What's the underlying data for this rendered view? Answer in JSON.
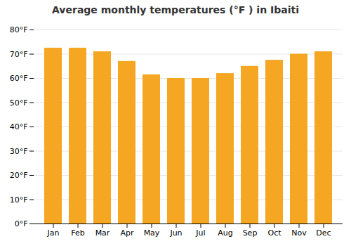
{
  "chart_data": {
    "type": "bar",
    "title": "Average monthly temperatures (°F ) in Ibaiti",
    "categories": [
      "Jan",
      "Feb",
      "Mar",
      "Apr",
      "May",
      "Jun",
      "Jul",
      "Aug",
      "Sep",
      "Oct",
      "Nov",
      "Dec"
    ],
    "values": [
      72.5,
      72.5,
      71,
      67,
      61.5,
      60,
      60,
      62,
      65,
      67.5,
      70,
      71
    ],
    "color": "#F5A623",
    "ylim": [
      0,
      80
    ],
    "yticks": [
      {
        "value": 0,
        "label": "0°F"
      },
      {
        "value": 10,
        "label": "10°F"
      },
      {
        "value": 20,
        "label": "20°F"
      },
      {
        "value": 30,
        "label": "30°F"
      },
      {
        "value": 40,
        "label": "40°F"
      },
      {
        "value": 50,
        "label": "50°F"
      },
      {
        "value": 60,
        "label": "60°F"
      },
      {
        "value": 70,
        "label": "70°F"
      },
      {
        "value": 80,
        "label": "80°F"
      }
    ],
    "grid": true
  }
}
